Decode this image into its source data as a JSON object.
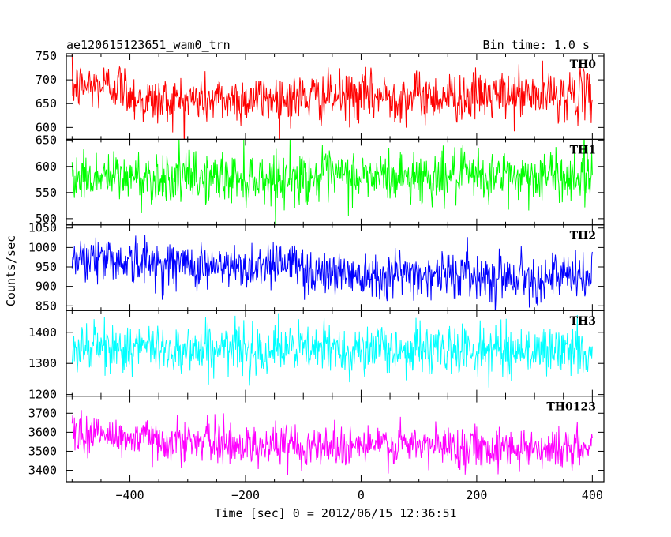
{
  "header": {
    "title": "ae120615123651_wam0_trn",
    "bin_time": "Bin time: 1.0 s"
  },
  "chart_data": {
    "type": "line",
    "title": "ae120615123651_wam0_trn",
    "xlabel": "Time [sec] 0 = 2012/06/15 12:36:51",
    "ylabel": "Counts/sec",
    "xlim": [
      -510,
      420
    ],
    "x_ticks": [
      -400,
      -200,
      0,
      200,
      400
    ],
    "x_tick_labels": [
      "−400",
      "−200",
      "0",
      "200",
      "400"
    ],
    "x_data_range": [
      -500,
      400
    ],
    "bin_time_s": 1.0,
    "grid": false,
    "panels": [
      {
        "name": "TH0",
        "color": "#ff0000",
        "ylim": [
          575,
          755
        ],
        "y_ticks": [
          600,
          650,
          700,
          750
        ],
        "trend": [
          {
            "x": -500,
            "y": 685
          },
          {
            "x": -420,
            "y": 690
          },
          {
            "x": -380,
            "y": 655
          },
          {
            "x": -200,
            "y": 660
          },
          {
            "x": 0,
            "y": 665
          },
          {
            "x": 200,
            "y": 665
          },
          {
            "x": 400,
            "y": 670
          }
        ],
        "noise_sd": 26
      },
      {
        "name": "TH1",
        "color": "#00ff00",
        "ylim": [
          488,
          652
        ],
        "y_ticks": [
          500,
          550,
          600,
          650
        ],
        "trend": [
          {
            "x": -500,
            "y": 580
          },
          {
            "x": -200,
            "y": 578
          },
          {
            "x": 0,
            "y": 580
          },
          {
            "x": 200,
            "y": 580
          },
          {
            "x": 400,
            "y": 583
          }
        ],
        "noise_sd": 25
      },
      {
        "name": "TH2",
        "color": "#0000ff",
        "ylim": [
          838,
          1058
        ],
        "y_ticks": [
          850,
          900,
          950,
          1000,
          1050
        ],
        "trend": [
          {
            "x": -500,
            "y": 980
          },
          {
            "x": -400,
            "y": 965
          },
          {
            "x": -200,
            "y": 945
          },
          {
            "x": -140,
            "y": 970
          },
          {
            "x": -80,
            "y": 935
          },
          {
            "x": 0,
            "y": 935
          },
          {
            "x": 200,
            "y": 930
          },
          {
            "x": 400,
            "y": 920
          }
        ],
        "noise_sd": 30
      },
      {
        "name": "TH3",
        "color": "#00ffff",
        "ylim": [
          1195,
          1470
        ],
        "y_ticks": [
          1200,
          1300,
          1400
        ],
        "trend": [
          {
            "x": -500,
            "y": 1350
          },
          {
            "x": 0,
            "y": 1345
          },
          {
            "x": 400,
            "y": 1340
          }
        ],
        "noise_sd": 40
      },
      {
        "name": "TH0123",
        "color": "#ff00ff",
        "ylim": [
          3340,
          3790
        ],
        "y_ticks": [
          3400,
          3500,
          3600,
          3700
        ],
        "trend": [
          {
            "x": -500,
            "y": 3600
          },
          {
            "x": -400,
            "y": 3570
          },
          {
            "x": -200,
            "y": 3535
          },
          {
            "x": 0,
            "y": 3530
          },
          {
            "x": 200,
            "y": 3525
          },
          {
            "x": 400,
            "y": 3510
          }
        ],
        "noise_sd": 55
      }
    ]
  }
}
